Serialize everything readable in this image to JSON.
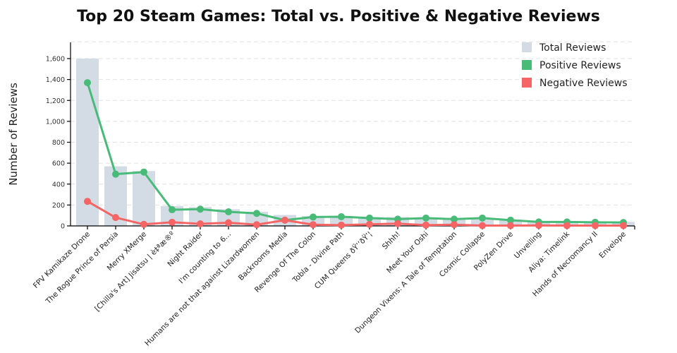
{
  "chart_data": {
    "type": "bar",
    "title": "Top 20 Steam Games: Total vs. Positive & Negative Reviews",
    "xlabel": "",
    "ylabel": "Number of Reviews",
    "ylim": [
      0,
      1760
    ],
    "yticks": [
      0,
      200,
      400,
      600,
      800,
      1000,
      1200,
      1400,
      1600
    ],
    "ytick_labels": [
      "0",
      "200",
      "400",
      "600",
      "800",
      "1,000",
      "1,200",
      "1,400",
      "1,600"
    ],
    "grid": true,
    "legend_position": "top-right",
    "categories": [
      "FPV Kamikaze Drone",
      "The Rogue Prince of Persia",
      "Merry XMerge",
      "[Chilla's Art] Jisatsu | è‡ªæ®º",
      "Night Raider",
      "I'm counting to 6...",
      "Humans are not that against Lizardwomen",
      "Backrooms Media",
      "Revenge Of The Colon",
      "Tobla - Divine Path",
      "CUM Queens ðŸ‘‘ðŸ’¦",
      "Shhh!",
      "Meet Your Oshi",
      "Dungeon Vixens: A Tale of Temptation",
      "Cosmic Collapse",
      "PolyZen Drive",
      "Unveiling",
      "Aliya: Timelink",
      "Hands of Necromancy II",
      "Envelope"
    ],
    "series": [
      {
        "name": "Total Reviews",
        "type": "bar",
        "color": "#d3dbe5",
        "values": [
          1600,
          570,
          525,
          190,
          180,
          160,
          135,
          105,
          95,
          95,
          85,
          85,
          80,
          75,
          75,
          60,
          45,
          40,
          40,
          38
        ]
      },
      {
        "name": "Positive Reviews",
        "type": "line",
        "color": "#48bb78",
        "values": [
          1370,
          495,
          515,
          155,
          160,
          135,
          120,
          55,
          85,
          88,
          75,
          65,
          75,
          65,
          75,
          55,
          38,
          38,
          35,
          33
        ]
      },
      {
        "name": "Negative Reviews",
        "type": "line",
        "color": "#f56565",
        "values": [
          235,
          80,
          15,
          35,
          20,
          30,
          12,
          55,
          12,
          8,
          15,
          22,
          8,
          12,
          3,
          3,
          5,
          3,
          3,
          3
        ]
      }
    ]
  }
}
